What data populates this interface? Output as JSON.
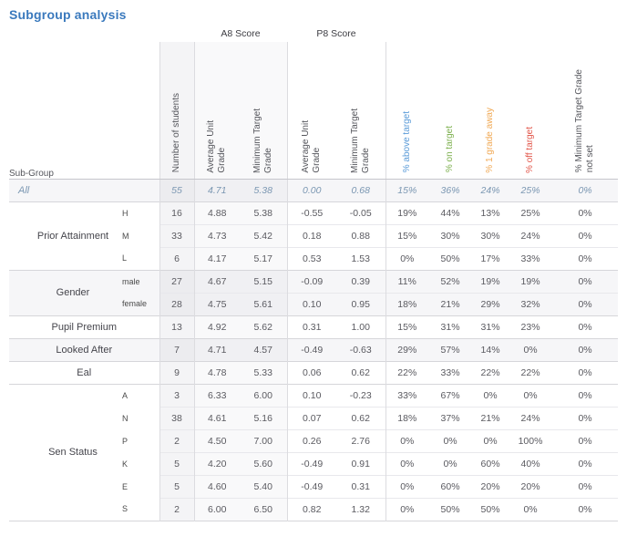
{
  "title": "Subgroup analysis",
  "colors": {
    "title_blue": "#3a79bd",
    "all_row_text": "#7b97b2",
    "pct_above_blue": "#5a9bd8",
    "pct_on_green": "#7db04f",
    "pct_1grade_orange": "#f0a955",
    "pct_off_red": "#e2574b",
    "header_text": "#55565c",
    "stripe_bg": "#f6f6f8"
  },
  "table": {
    "corner_label": "Sub-Group",
    "score_groups": [
      {
        "id": "a8",
        "label": "A8 Score"
      },
      {
        "id": "p8",
        "label": "P8 Score"
      }
    ],
    "columns": [
      {
        "id": "students",
        "label": "Number of students",
        "color": null
      },
      {
        "id": "a8-avg",
        "label": "Average Unit\nGrade",
        "color": null
      },
      {
        "id": "a8-min",
        "label": "Minimum Target\nGrade",
        "color": null
      },
      {
        "id": "p8-avg",
        "label": "Average Unit\nGrade",
        "color": null
      },
      {
        "id": "p8-min",
        "label": "Minimum Target\nGrade",
        "color": null
      },
      {
        "id": "pct-above",
        "label": "% above target",
        "color": "#5a9bd8"
      },
      {
        "id": "pct-on",
        "label": "% on target",
        "color": "#7db04f"
      },
      {
        "id": "pct-1grade",
        "label": "% 1 grade away",
        "color": "#f0a955"
      },
      {
        "id": "pct-off",
        "label": "% off target",
        "color": "#e2574b"
      },
      {
        "id": "pct-notset",
        "label": "% Minimum Target Grade\nnot set",
        "color": null
      }
    ],
    "groups": [
      {
        "label": "All",
        "all_style": true,
        "striped": true,
        "rows": [
          {
            "sub": "",
            "values": [
              "55",
              "4.71",
              "5.38",
              "0.00",
              "0.68",
              "15%",
              "36%",
              "24%",
              "25%",
              "0%"
            ]
          }
        ]
      },
      {
        "label": "Prior Attainment",
        "all_style": false,
        "striped": false,
        "rows": [
          {
            "sub": "H",
            "values": [
              "16",
              "4.88",
              "5.38",
              "-0.55",
              "-0.05",
              "19%",
              "44%",
              "13%",
              "25%",
              "0%"
            ]
          },
          {
            "sub": "M",
            "values": [
              "33",
              "4.73",
              "5.42",
              "0.18",
              "0.88",
              "15%",
              "30%",
              "30%",
              "24%",
              "0%"
            ]
          },
          {
            "sub": "L",
            "values": [
              "6",
              "4.17",
              "5.17",
              "0.53",
              "1.53",
              "0%",
              "50%",
              "17%",
              "33%",
              "0%"
            ]
          }
        ]
      },
      {
        "label": "Gender",
        "all_style": false,
        "striped": true,
        "rows": [
          {
            "sub": "male",
            "values": [
              "27",
              "4.67",
              "5.15",
              "-0.09",
              "0.39",
              "11%",
              "52%",
              "19%",
              "19%",
              "0%"
            ]
          },
          {
            "sub": "female",
            "values": [
              "28",
              "4.75",
              "5.61",
              "0.10",
              "0.95",
              "18%",
              "21%",
              "29%",
              "32%",
              "0%"
            ]
          }
        ]
      },
      {
        "label": "Pupil Premium",
        "all_style": false,
        "striped": false,
        "rows": [
          {
            "sub": "",
            "values": [
              "13",
              "4.92",
              "5.62",
              "0.31",
              "1.00",
              "15%",
              "31%",
              "31%",
              "23%",
              "0%"
            ]
          }
        ]
      },
      {
        "label": "Looked After",
        "all_style": false,
        "striped": true,
        "rows": [
          {
            "sub": "",
            "values": [
              "7",
              "4.71",
              "4.57",
              "-0.49",
              "-0.63",
              "29%",
              "57%",
              "14%",
              "0%",
              "0%"
            ]
          }
        ]
      },
      {
        "label": "Eal",
        "all_style": false,
        "striped": false,
        "rows": [
          {
            "sub": "",
            "values": [
              "9",
              "4.78",
              "5.33",
              "0.06",
              "0.62",
              "22%",
              "33%",
              "22%",
              "22%",
              "0%"
            ]
          }
        ]
      },
      {
        "label": "Sen Status",
        "all_style": false,
        "striped": false,
        "rows": [
          {
            "sub": "A",
            "values": [
              "3",
              "6.33",
              "6.00",
              "0.10",
              "-0.23",
              "33%",
              "67%",
              "0%",
              "0%",
              "0%"
            ]
          },
          {
            "sub": "N",
            "values": [
              "38",
              "4.61",
              "5.16",
              "0.07",
              "0.62",
              "18%",
              "37%",
              "21%",
              "24%",
              "0%"
            ]
          },
          {
            "sub": "P",
            "values": [
              "2",
              "4.50",
              "7.00",
              "0.26",
              "2.76",
              "0%",
              "0%",
              "0%",
              "100%",
              "0%"
            ]
          },
          {
            "sub": "K",
            "values": [
              "5",
              "4.20",
              "5.60",
              "-0.49",
              "0.91",
              "0%",
              "0%",
              "60%",
              "40%",
              "0%"
            ]
          },
          {
            "sub": "E",
            "values": [
              "5",
              "4.60",
              "5.40",
              "-0.49",
              "0.31",
              "0%",
              "60%",
              "20%",
              "20%",
              "0%"
            ]
          },
          {
            "sub": "S",
            "values": [
              "2",
              "6.00",
              "6.50",
              "0.82",
              "1.32",
              "0%",
              "50%",
              "50%",
              "0%",
              "0%"
            ]
          }
        ]
      }
    ]
  }
}
